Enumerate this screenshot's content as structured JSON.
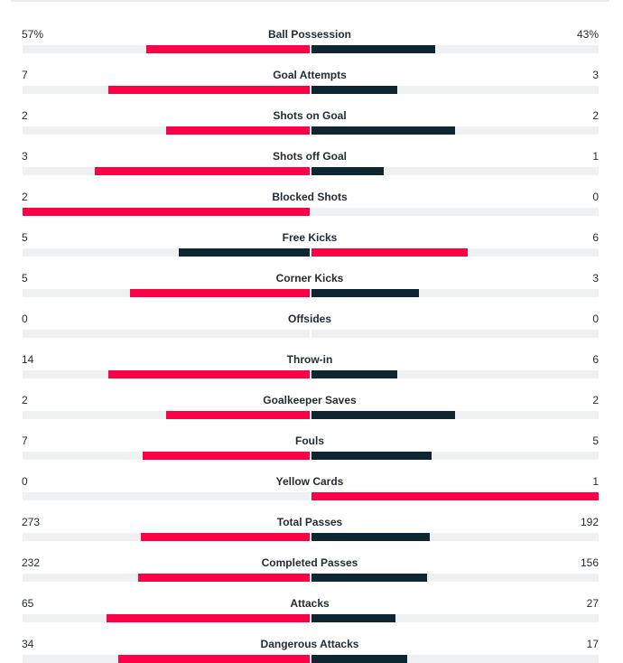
{
  "colors": {
    "leader": "#ff0046",
    "trailer": "#0e2631",
    "track": "#eef0f2"
  },
  "stats": [
    {
      "label": "Ball Possession",
      "home": "57%",
      "away": "43%",
      "home_value": 57,
      "away_value": 43
    },
    {
      "label": "Goal Attempts",
      "home": "7",
      "away": "3",
      "home_value": 7,
      "away_value": 3
    },
    {
      "label": "Shots on Goal",
      "home": "2",
      "away": "2",
      "home_value": 2,
      "away_value": 2
    },
    {
      "label": "Shots off Goal",
      "home": "3",
      "away": "1",
      "home_value": 3,
      "away_value": 1
    },
    {
      "label": "Blocked Shots",
      "home": "2",
      "away": "0",
      "home_value": 2,
      "away_value": 0
    },
    {
      "label": "Free Kicks",
      "home": "5",
      "away": "6",
      "home_value": 5,
      "away_value": 6
    },
    {
      "label": "Corner Kicks",
      "home": "5",
      "away": "3",
      "home_value": 5,
      "away_value": 3
    },
    {
      "label": "Offsides",
      "home": "0",
      "away": "0",
      "home_value": 0,
      "away_value": 0
    },
    {
      "label": "Throw-in",
      "home": "14",
      "away": "6",
      "home_value": 14,
      "away_value": 6
    },
    {
      "label": "Goalkeeper Saves",
      "home": "2",
      "away": "2",
      "home_value": 2,
      "away_value": 2
    },
    {
      "label": "Fouls",
      "home": "7",
      "away": "5",
      "home_value": 7,
      "away_value": 5
    },
    {
      "label": "Yellow Cards",
      "home": "0",
      "away": "1",
      "home_value": 0,
      "away_value": 1
    },
    {
      "label": "Total Passes",
      "home": "273",
      "away": "192",
      "home_value": 273,
      "away_value": 192
    },
    {
      "label": "Completed Passes",
      "home": "232",
      "away": "156",
      "home_value": 232,
      "away_value": 156
    },
    {
      "label": "Attacks",
      "home": "65",
      "away": "27",
      "home_value": 65,
      "away_value": 27
    },
    {
      "label": "Dangerous Attacks",
      "home": "34",
      "away": "17",
      "home_value": 34,
      "away_value": 17
    }
  ]
}
